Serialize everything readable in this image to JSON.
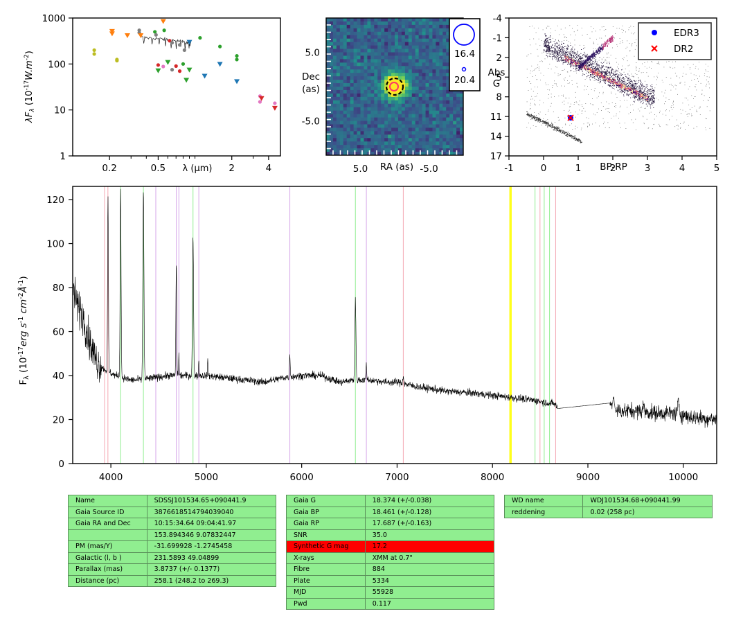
{
  "colors": {
    "sed_points": [
      "#1f77b4",
      "#ff7f0e",
      "#2ca02c",
      "#d62728",
      "#7f7f7f",
      "#bcbd22",
      "#e377c2"
    ],
    "hr_track": "#e25a2c",
    "edr3": "#0000ff",
    "dr2": "#ff0000",
    "line_red": "#f4a7b2",
    "line_green": "#90ee90",
    "line_violet": "#d6a6e8",
    "line_yellow": "#ffff00",
    "table_green": "#90ee90",
    "table_red": "#ff0000"
  },
  "chart_data": [
    {
      "id": "sed",
      "type": "scatter",
      "ylabel_main": "λF",
      "ylabel_sub": "λ",
      "ylabel_rest": "(10",
      "ylabel_exp": "-17",
      "ylabel_unit": "W.m",
      "ylabel_unit_exp": "-2",
      "ylabel_close": ")",
      "xlabel": "λ (μm)",
      "xscale": "log",
      "yscale": "log",
      "xlim": [
        0.1,
        5.0
      ],
      "ylim": [
        1,
        1000
      ],
      "xticks": [
        {
          "v": 0.2,
          "label": "0.2"
        },
        {
          "v": 0.5,
          "label": "0.5"
        },
        {
          "v": 2,
          "label": "2"
        },
        {
          "v": 4,
          "label": "4"
        }
      ],
      "yticks": [
        {
          "v": 1,
          "label": "1"
        },
        {
          "v": 10,
          "label": "10"
        },
        {
          "v": 100,
          "label": "100"
        },
        {
          "v": 1000,
          "label": "1000"
        }
      ],
      "points": [
        {
          "x": 0.15,
          "y": 200,
          "c": 5,
          "m": "o"
        },
        {
          "x": 0.15,
          "y": 165,
          "c": 5,
          "m": "o"
        },
        {
          "x": 0.23,
          "y": 125,
          "c": 5,
          "m": "o"
        },
        {
          "x": 0.23,
          "y": 118,
          "c": 5,
          "m": "o"
        },
        {
          "x": 0.21,
          "y": 520,
          "c": 1,
          "m": "v"
        },
        {
          "x": 0.21,
          "y": 460,
          "c": 1,
          "m": "v"
        },
        {
          "x": 0.28,
          "y": 420,
          "c": 1,
          "m": "v"
        },
        {
          "x": 0.35,
          "y": 480,
          "c": 4,
          "m": "o"
        },
        {
          "x": 0.35,
          "y": 540,
          "c": 4,
          "m": "o"
        },
        {
          "x": 0.36,
          "y": 420,
          "c": 1,
          "m": "v"
        },
        {
          "x": 0.47,
          "y": 500,
          "c": 2,
          "m": "o"
        },
        {
          "x": 0.48,
          "y": 430,
          "c": 4,
          "m": "o"
        },
        {
          "x": 0.55,
          "y": 850,
          "c": 1,
          "m": "v"
        },
        {
          "x": 0.56,
          "y": 540,
          "c": 2,
          "m": "o"
        },
        {
          "x": 0.62,
          "y": 320,
          "c": 3,
          "m": "o"
        },
        {
          "x": 0.65,
          "y": 290,
          "c": 4,
          "m": "o"
        },
        {
          "x": 0.75,
          "y": 260,
          "c": 4,
          "m": "o"
        },
        {
          "x": 0.82,
          "y": 200,
          "c": 4,
          "m": "o"
        },
        {
          "x": 0.9,
          "y": 300,
          "c": 0,
          "m": "v"
        },
        {
          "x": 1.1,
          "y": 370,
          "c": 2,
          "m": "o"
        },
        {
          "x": 1.6,
          "y": 240,
          "c": 2,
          "m": "o"
        },
        {
          "x": 1.6,
          "y": 100,
          "c": 0,
          "m": "v"
        },
        {
          "x": 2.2,
          "y": 150,
          "c": 2,
          "m": "o"
        },
        {
          "x": 2.2,
          "y": 125,
          "c": 2,
          "m": "o"
        },
        {
          "x": 2.2,
          "y": 42,
          "c": 0,
          "m": "v"
        },
        {
          "x": 1.2,
          "y": 55,
          "c": 0,
          "m": "v"
        },
        {
          "x": 0.5,
          "y": 72,
          "c": 2,
          "m": "v"
        },
        {
          "x": 0.5,
          "y": 95,
          "c": 3,
          "m": "o"
        },
        {
          "x": 0.6,
          "y": 110,
          "c": 2,
          "m": "v"
        },
        {
          "x": 0.65,
          "y": 75,
          "c": 4,
          "m": "o"
        },
        {
          "x": 0.7,
          "y": 90,
          "c": 3,
          "m": "o"
        },
        {
          "x": 0.75,
          "y": 70,
          "c": 3,
          "m": "o"
        },
        {
          "x": 0.8,
          "y": 100,
          "c": 2,
          "m": "o"
        },
        {
          "x": 0.85,
          "y": 45,
          "c": 2,
          "m": "v"
        },
        {
          "x": 0.9,
          "y": 75,
          "c": 2,
          "m": "v"
        },
        {
          "x": 0.55,
          "y": 88,
          "c": 6,
          "m": "o"
        },
        {
          "x": 3.4,
          "y": 20,
          "c": 6,
          "m": "o"
        },
        {
          "x": 3.4,
          "y": 15,
          "c": 6,
          "m": "o"
        },
        {
          "x": 3.5,
          "y": 18,
          "c": 3,
          "m": "v"
        },
        {
          "x": 4.5,
          "y": 14,
          "c": 6,
          "m": "o"
        },
        {
          "x": 4.5,
          "y": 11,
          "c": 3,
          "m": "v"
        }
      ]
    },
    {
      "id": "image",
      "type": "heatmap",
      "xlabel": "RA (as)",
      "ylabel_line1": "Dec",
      "ylabel_line2": "(as)",
      "xlim": [
        10,
        -10
      ],
      "ylim": [
        -10,
        10
      ],
      "xticks": [
        {
          "v": 5,
          "label": "5.0"
        },
        {
          "v": -5,
          "label": "-5.0"
        }
      ],
      "yticks": [
        {
          "v": 5,
          "label": "5.0"
        },
        {
          "v": -5,
          "label": "-5.0"
        }
      ],
      "legend_mags": [
        "16.4",
        "20.4"
      ]
    },
    {
      "id": "hr",
      "type": "scatter",
      "xlabel": "BP-RP",
      "ylabel_line1": "Abs",
      "ylabel_line2": "G",
      "xlim": [
        -1,
        5
      ],
      "ylim": [
        17,
        -4
      ],
      "xticks": [
        {
          "v": -1,
          "label": "-1"
        },
        {
          "v": 0,
          "label": "0"
        },
        {
          "v": 1,
          "label": "1"
        },
        {
          "v": 2,
          "label": "2"
        },
        {
          "v": 3,
          "label": "3"
        },
        {
          "v": 4,
          "label": "4"
        },
        {
          "v": 5,
          "label": "5"
        }
      ],
      "yticks": [
        {
          "v": -4,
          "label": "-4"
        },
        {
          "v": -1,
          "label": "-1"
        },
        {
          "v": 2,
          "label": "2"
        },
        {
          "v": 5,
          "label": "5"
        },
        {
          "v": 8,
          "label": "8"
        },
        {
          "v": 11,
          "label": "11"
        },
        {
          "v": 14,
          "label": "14"
        },
        {
          "v": 17,
          "label": "17"
        }
      ],
      "legend": [
        {
          "name": "EDR3",
          "marker": "circle"
        },
        {
          "name": "DR2",
          "marker": "x"
        }
      ],
      "target": {
        "bp_rp": 0.78,
        "abs_g": 11.2
      }
    },
    {
      "id": "spectrum",
      "type": "line",
      "ylabel_pre": "F",
      "ylabel_sub": "λ",
      "ylabel_mid": "(10",
      "ylabel_exp1": "-17",
      "ylabel_erg": "erg s",
      "ylabel_exp2": "-1",
      "ylabel_cm": "cm",
      "ylabel_exp3": "-2",
      "ylabel_ang": "Å",
      "ylabel_exp4": "-1",
      "ylabel_close": ")",
      "xlim": [
        3600,
        10350
      ],
      "ylim": [
        0,
        126
      ],
      "xticks": [
        {
          "v": 4000,
          "label": "4000"
        },
        {
          "v": 5000,
          "label": "5000"
        },
        {
          "v": 6000,
          "label": "6000"
        },
        {
          "v": 7000,
          "label": "7000"
        },
        {
          "v": 8000,
          "label": "8000"
        },
        {
          "v": 9000,
          "label": "9000"
        },
        {
          "v": 10000,
          "label": "10000"
        }
      ],
      "yticks": [
        {
          "v": 0,
          "label": "0"
        },
        {
          "v": 20,
          "label": "20"
        },
        {
          "v": 40,
          "label": "40"
        },
        {
          "v": 60,
          "label": "60"
        },
        {
          "v": 80,
          "label": "80"
        },
        {
          "v": 100,
          "label": "100"
        },
        {
          "v": 120,
          "label": "120"
        }
      ],
      "vlines": [
        {
          "x": 3934,
          "c": "line_red"
        },
        {
          "x": 3969,
          "c": "line_red"
        },
        {
          "x": 4102,
          "c": "line_green"
        },
        {
          "x": 4341,
          "c": "line_green"
        },
        {
          "x": 4471,
          "c": "line_violet"
        },
        {
          "x": 4686,
          "c": "line_violet"
        },
        {
          "x": 4713,
          "c": "line_violet"
        },
        {
          "x": 4861,
          "c": "line_green"
        },
        {
          "x": 4922,
          "c": "line_violet"
        },
        {
          "x": 5876,
          "c": "line_violet"
        },
        {
          "x": 6563,
          "c": "line_green"
        },
        {
          "x": 6678,
          "c": "line_violet"
        },
        {
          "x": 7065,
          "c": "line_red"
        },
        {
          "x": 8183,
          "c": "line_yellow"
        },
        {
          "x": 8195,
          "c": "line_yellow"
        },
        {
          "x": 8446,
          "c": "line_green"
        },
        {
          "x": 8498,
          "c": "line_red"
        },
        {
          "x": 8542,
          "c": "line_green"
        },
        {
          "x": 8598,
          "c": "line_green"
        },
        {
          "x": 8662,
          "c": "line_red"
        }
      ],
      "anchors": [
        [
          3600,
          80
        ],
        [
          3650,
          72
        ],
        [
          3700,
          68
        ],
        [
          3750,
          60
        ],
        [
          3800,
          52
        ],
        [
          3850,
          47
        ],
        [
          3900,
          44
        ],
        [
          3960,
          42
        ],
        [
          4050,
          40
        ],
        [
          4200,
          38
        ],
        [
          4300,
          38
        ],
        [
          4450,
          39
        ],
        [
          4600,
          40
        ],
        [
          4800,
          40
        ],
        [
          5000,
          40
        ],
        [
          5200,
          39
        ],
        [
          5400,
          38
        ],
        [
          5600,
          37
        ],
        [
          5800,
          39
        ],
        [
          6000,
          40
        ],
        [
          6200,
          40
        ],
        [
          6400,
          37
        ],
        [
          6550,
          38
        ],
        [
          6700,
          38
        ],
        [
          6900,
          37
        ],
        [
          7000,
          37
        ],
        [
          7200,
          35
        ],
        [
          7500,
          33
        ],
        [
          7800,
          32
        ],
        [
          8000,
          31
        ],
        [
          8200,
          30
        ],
        [
          8400,
          29
        ],
        [
          8660,
          27
        ],
        [
          8680,
          25
        ],
        [
          9230,
          27.5
        ],
        [
          9300,
          24
        ],
        [
          9500,
          24
        ],
        [
          9700,
          23
        ],
        [
          9900,
          23
        ],
        [
          10100,
          21
        ],
        [
          10350,
          20
        ]
      ],
      "peaks": [
        {
          "x": 3970,
          "h": 80,
          "w": 6
        },
        {
          "x": 4102,
          "h": 86,
          "w": 7
        },
        {
          "x": 4341,
          "h": 86,
          "w": 8
        },
        {
          "x": 4686,
          "h": 52,
          "w": 6
        },
        {
          "x": 4713,
          "h": 10,
          "w": 4
        },
        {
          "x": 4861,
          "h": 63,
          "w": 8
        },
        {
          "x": 4922,
          "h": 8,
          "w": 4
        },
        {
          "x": 5016,
          "h": 7,
          "w": 4
        },
        {
          "x": 5876,
          "h": 10,
          "w": 6
        },
        {
          "x": 6563,
          "h": 36,
          "w": 8
        },
        {
          "x": 6678,
          "h": 7,
          "w": 6
        },
        {
          "x": 7065,
          "h": 4,
          "w": 6
        },
        {
          "x": 9270,
          "h": 5,
          "w": 10
        },
        {
          "x": 9580,
          "h": 4,
          "w": 8
        },
        {
          "x": 9950,
          "h": 6,
          "w": 10
        }
      ]
    }
  ],
  "tables": {
    "left": [
      [
        "Name",
        "SDSSJ101534.65+090441.9"
      ],
      [
        "Gaia Source ID",
        "3876618514794039040"
      ],
      [
        "Gaia RA and Dec",
        "10:15:34.64    09:04:41.97"
      ],
      [
        "",
        "153.894346    9.07832447"
      ],
      [
        "PM (mas/Y)",
        "-31.699928    -1.2745458"
      ],
      [
        "Galactic (l, b )",
        "231.5893    49.04899"
      ],
      [
        "Parallax (mas)",
        "3.8737 (+/- 0.1377)"
      ],
      [
        "Distance (pc)",
        "258.1 (248.2 to 269.3)"
      ]
    ],
    "middle": [
      [
        "Gaia G",
        "18.374 (+/-0.038)"
      ],
      [
        "Gaia BP",
        "18.461 (+/-0.128)"
      ],
      [
        "Gaia RP",
        "17.687 (+/-0.163)"
      ],
      [
        "SNR",
        "35.0"
      ],
      [
        "Synthetic G mag",
        "17.2"
      ],
      [
        "X-rays",
        "XMM at 0.7\""
      ],
      [
        "Fibre",
        "884"
      ],
      [
        "Plate",
        "5334"
      ],
      [
        "MJD",
        "55928"
      ],
      [
        "Pwd",
        "0.117"
      ]
    ],
    "middle_highlight_row": 4,
    "right": [
      [
        "WD name",
        "WDJ101534.68+090441.99"
      ],
      [
        "reddening",
        "0.02 (258 pc)"
      ]
    ]
  }
}
